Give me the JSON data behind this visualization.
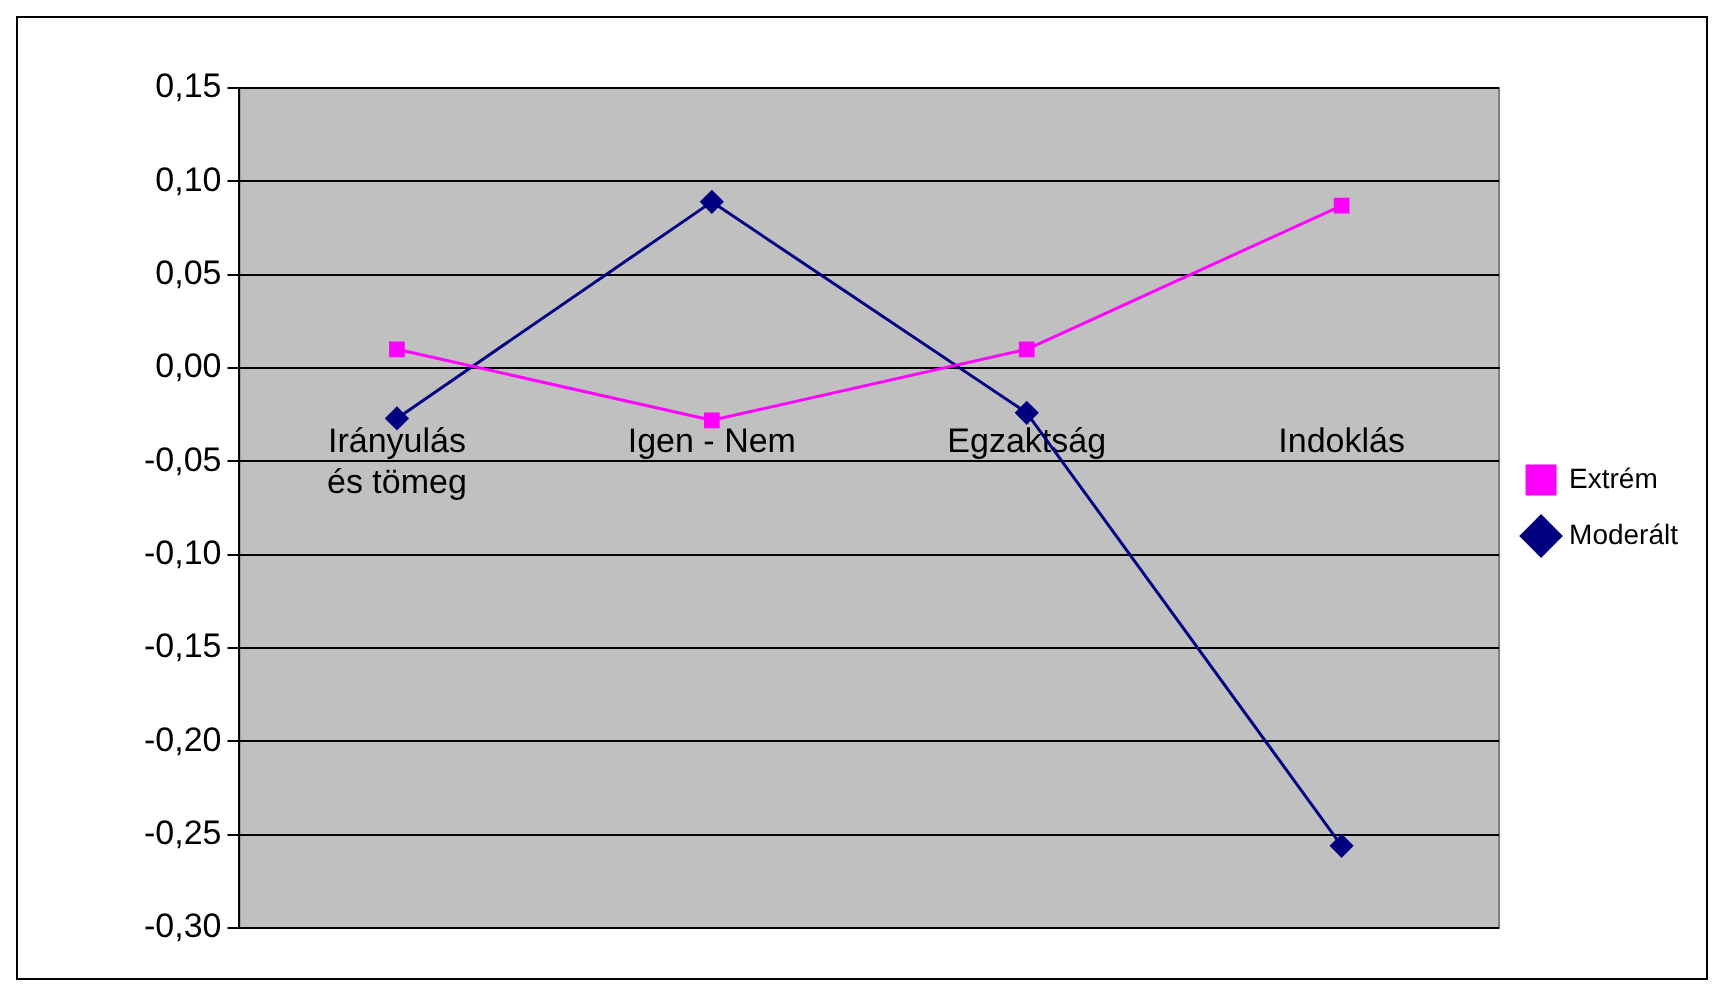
{
  "chart_data": {
    "type": "line",
    "categories": [
      "Irányulás és tömeg",
      "Igen - Nem",
      "Egzaktság",
      "Indoklás"
    ],
    "series": [
      {
        "name": "Extrém",
        "color": "#ff00ff",
        "marker": "square",
        "values": [
          0.01,
          -0.028,
          0.01,
          0.087
        ]
      },
      {
        "name": "Moderált",
        "color": "#000080",
        "marker": "diamond",
        "values": [
          -0.027,
          0.089,
          -0.024,
          -0.256
        ]
      }
    ],
    "ylim": [
      -0.3,
      0.15
    ],
    "yticks": [
      {
        "value": -0.3,
        "label": "-0,30"
      },
      {
        "value": -0.25,
        "label": "-0,25"
      },
      {
        "value": -0.2,
        "label": "-0,20"
      },
      {
        "value": -0.15,
        "label": "-0,15"
      },
      {
        "value": -0.1,
        "label": "-0,10"
      },
      {
        "value": -0.05,
        "label": "-0,05"
      },
      {
        "value": 0,
        "label": "0,00"
      },
      {
        "value": 0.05,
        "label": "0,05"
      },
      {
        "value": 0.1,
        "label": "0,10"
      },
      {
        "value": 0.15,
        "label": "0,15"
      }
    ],
    "grid": "y",
    "legend": "right"
  }
}
